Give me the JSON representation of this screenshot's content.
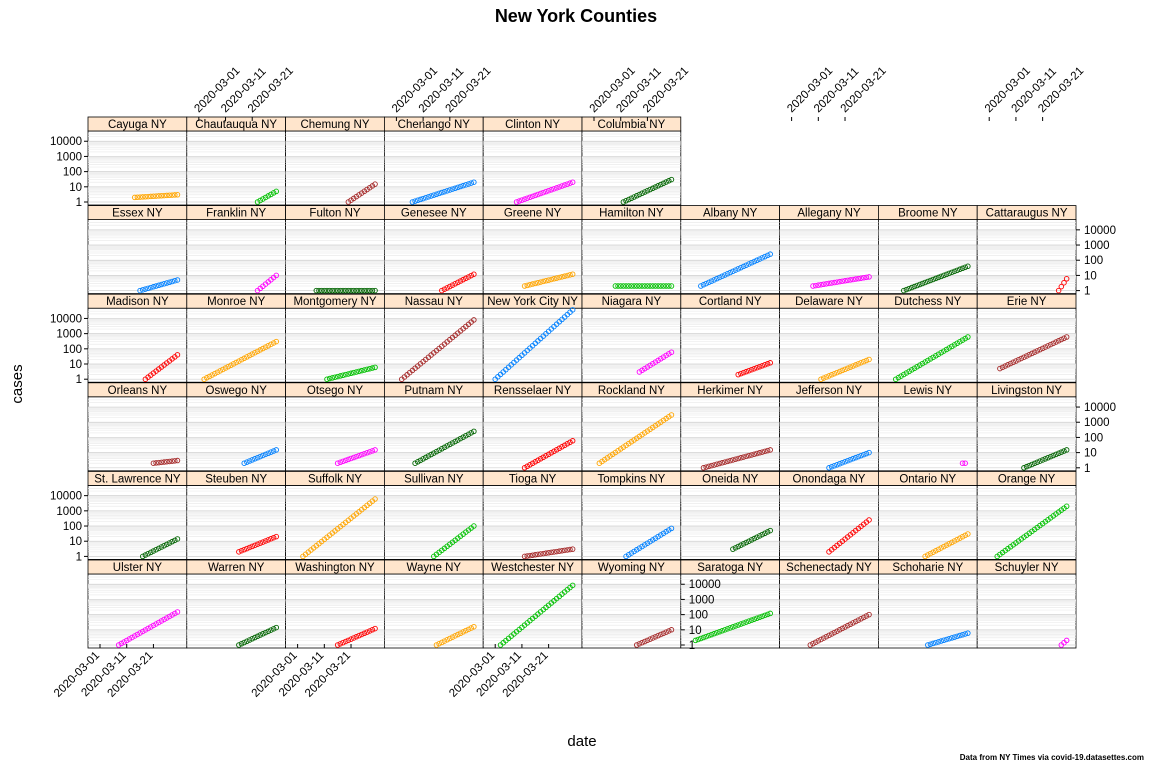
{
  "chart_data": {
    "type": "scatter",
    "title": "New York Counties",
    "xlabel": "date",
    "ylabel": "cases",
    "yscale": "log",
    "ylim": [
      1,
      30000
    ],
    "xlim": [
      "2020-02-27",
      "2020-04-01"
    ],
    "x_ticks": [
      "2020-03-01",
      "2020-03-11",
      "2020-03-21"
    ],
    "y_ticks": [
      "1",
      "10",
      "100",
      "1000",
      "10000"
    ],
    "note": "Data from NY Times via covid-19.datasettes.com",
    "strip_color": "#ffe5cc",
    "palette": [
      "#0080ff",
      "#ff00ff",
      "#006400",
      "#ff0000",
      "#ffa500"
    ],
    "panels": [
      {
        "name": "Ulster NY",
        "color": "#ff00ff",
        "start": "2020-03-08",
        "end": "2020-03-30",
        "v0": 1,
        "v1": 150
      },
      {
        "name": "Warren NY",
        "color": "#006400",
        "start": "2020-03-16",
        "end": "2020-03-30",
        "v0": 1,
        "v1": 14
      },
      {
        "name": "Washington NY",
        "color": "#ff0000",
        "start": "2020-03-16",
        "end": "2020-03-30",
        "v0": 1,
        "v1": 12
      },
      {
        "name": "Wayne NY",
        "color": "#ffa500",
        "start": "2020-03-16",
        "end": "2020-03-30",
        "v0": 1,
        "v1": 16
      },
      {
        "name": "Westchester NY",
        "color": "#00c000",
        "start": "2020-03-03",
        "end": "2020-03-30",
        "v0": 1,
        "v1": 8500
      },
      {
        "name": "Wyoming NY",
        "color": "#a52a2a",
        "start": "2020-03-17",
        "end": "2020-03-30",
        "v0": 1,
        "v1": 10
      },
      {
        "name": "Saratoga NY",
        "color": "#00c000",
        "start": "2020-03-02",
        "end": "2020-03-30",
        "v0": 2,
        "v1": 120
      },
      {
        "name": "Schenectady NY",
        "color": "#a52a2a",
        "start": "2020-03-08",
        "end": "2020-03-30",
        "v0": 1,
        "v1": 100
      },
      {
        "name": "Schoharie NY",
        "color": "#0080ff",
        "start": "2020-03-15",
        "end": "2020-03-30",
        "v0": 1,
        "v1": 6
      },
      {
        "name": "Schuyler NY",
        "color": "#ff00ff",
        "start": "2020-03-28",
        "end": "2020-03-30",
        "v0": 1,
        "v1": 2
      },
      {
        "name": "St. Lawrence NY",
        "color": "#006400",
        "start": "2020-03-17",
        "end": "2020-03-30",
        "v0": 1,
        "v1": 14
      },
      {
        "name": "Steuben NY",
        "color": "#ff0000",
        "start": "2020-03-16",
        "end": "2020-03-30",
        "v0": 2,
        "v1": 20
      },
      {
        "name": "Suffolk NY",
        "color": "#ffa500",
        "start": "2020-03-03",
        "end": "2020-03-30",
        "v0": 1,
        "v1": 6000
      },
      {
        "name": "Sullivan NY",
        "color": "#00c000",
        "start": "2020-03-15",
        "end": "2020-03-30",
        "v0": 1,
        "v1": 100
      },
      {
        "name": "Tioga NY",
        "color": "#a52a2a",
        "start": "2020-03-12",
        "end": "2020-03-30",
        "v0": 1,
        "v1": 3
      },
      {
        "name": "Tompkins NY",
        "color": "#0080ff",
        "start": "2020-03-13",
        "end": "2020-03-30",
        "v0": 1,
        "v1": 70
      },
      {
        "name": "Oneida NY",
        "color": "#006400",
        "start": "2020-03-16",
        "end": "2020-03-30",
        "v0": 3,
        "v1": 50
      },
      {
        "name": "Onondaga NY",
        "color": "#ff0000",
        "start": "2020-03-15",
        "end": "2020-03-30",
        "v0": 2,
        "v1": 250
      },
      {
        "name": "Ontario NY",
        "color": "#ffa500",
        "start": "2020-03-14",
        "end": "2020-03-30",
        "v0": 1,
        "v1": 30
      },
      {
        "name": "Orange NY",
        "color": "#00c000",
        "start": "2020-03-04",
        "end": "2020-03-30",
        "v0": 1,
        "v1": 2000
      },
      {
        "name": "Orleans NY",
        "color": "#a52a2a",
        "start": "2020-03-21",
        "end": "2020-03-30",
        "v0": 2,
        "v1": 3
      },
      {
        "name": "Oswego NY",
        "color": "#0080ff",
        "start": "2020-03-18",
        "end": "2020-03-30",
        "v0": 2,
        "v1": 15
      },
      {
        "name": "Otsego NY",
        "color": "#ff00ff",
        "start": "2020-03-16",
        "end": "2020-03-30",
        "v0": 2,
        "v1": 15
      },
      {
        "name": "Putnam NY",
        "color": "#006400",
        "start": "2020-03-08",
        "end": "2020-03-30",
        "v0": 2,
        "v1": 250
      },
      {
        "name": "Rensselaer NY",
        "color": "#ff0000",
        "start": "2020-03-12",
        "end": "2020-03-30",
        "v0": 1,
        "v1": 60
      },
      {
        "name": "Rockland NY",
        "color": "#ffa500",
        "start": "2020-03-03",
        "end": "2020-03-30",
        "v0": 2,
        "v1": 3000
      },
      {
        "name": "Herkimer NY",
        "color": "#a52a2a",
        "start": "2020-03-05",
        "end": "2020-03-30",
        "v0": 1,
        "v1": 15
      },
      {
        "name": "Jefferson NY",
        "color": "#0080ff",
        "start": "2020-03-15",
        "end": "2020-03-30",
        "v0": 1,
        "v1": 10
      },
      {
        "name": "Lewis NY",
        "color": "#ff00ff",
        "start": "2020-03-28",
        "end": "2020-03-29",
        "v0": 2,
        "v1": 2
      },
      {
        "name": "Livingston NY",
        "color": "#006400",
        "start": "2020-03-14",
        "end": "2020-03-30",
        "v0": 1,
        "v1": 15
      },
      {
        "name": "Madison NY",
        "color": "#ff0000",
        "start": "2020-03-18",
        "end": "2020-03-30",
        "v0": 1,
        "v1": 40
      },
      {
        "name": "Monroe NY",
        "color": "#ffa500",
        "start": "2020-03-03",
        "end": "2020-03-30",
        "v0": 1,
        "v1": 300
      },
      {
        "name": "Montgomery NY",
        "color": "#00c000",
        "start": "2020-03-12",
        "end": "2020-03-30",
        "v0": 1,
        "v1": 6
      },
      {
        "name": "Nassau NY",
        "color": "#a52a2a",
        "start": "2020-03-03",
        "end": "2020-03-30",
        "v0": 1,
        "v1": 8000
      },
      {
        "name": "New York City NY",
        "color": "#0080ff",
        "start": "2020-03-01",
        "end": "2020-03-30",
        "v0": 1,
        "v1": 37000
      },
      {
        "name": "Niagara NY",
        "color": "#ff00ff",
        "start": "2020-03-18",
        "end": "2020-03-30",
        "v0": 3,
        "v1": 60
      },
      {
        "name": "Cortland NY",
        "color": "#ff0000",
        "start": "2020-03-18",
        "end": "2020-03-30",
        "v0": 2,
        "v1": 12
      },
      {
        "name": "Delaware NY",
        "color": "#ffa500",
        "start": "2020-03-12",
        "end": "2020-03-30",
        "v0": 1,
        "v1": 20
      },
      {
        "name": "Dutchess NY",
        "color": "#00c000",
        "start": "2020-03-03",
        "end": "2020-03-30",
        "v0": 1,
        "v1": 600
      },
      {
        "name": "Erie NY",
        "color": "#a52a2a",
        "start": "2020-03-05",
        "end": "2020-03-30",
        "v0": 5,
        "v1": 600
      },
      {
        "name": "Essex NY",
        "color": "#0080ff",
        "start": "2020-03-16",
        "end": "2020-03-30",
        "v0": 1,
        "v1": 5
      },
      {
        "name": "Franklin NY",
        "color": "#ff00ff",
        "start": "2020-03-23",
        "end": "2020-03-30",
        "v0": 1,
        "v1": 10
      },
      {
        "name": "Fulton NY",
        "color": "#006400",
        "start": "2020-03-08",
        "end": "2020-03-30",
        "v0": 1,
        "v1": 1
      },
      {
        "name": "Genesee NY",
        "color": "#ff0000",
        "start": "2020-03-18",
        "end": "2020-03-30",
        "v0": 1,
        "v1": 12
      },
      {
        "name": "Greene NY",
        "color": "#ffa500",
        "start": "2020-03-12",
        "end": "2020-03-30",
        "v0": 2,
        "v1": 12
      },
      {
        "name": "Hamilton NY",
        "color": "#00c000",
        "start": "2020-03-09",
        "end": "2020-03-30",
        "v0": 2,
        "v1": 2
      },
      {
        "name": "Albany NY",
        "color": "#0080ff",
        "start": "2020-03-04",
        "end": "2020-03-30",
        "v0": 2,
        "v1": 250
      },
      {
        "name": "Allegany NY",
        "color": "#ff00ff",
        "start": "2020-03-09",
        "end": "2020-03-30",
        "v0": 2,
        "v1": 8
      },
      {
        "name": "Broome NY",
        "color": "#006400",
        "start": "2020-03-06",
        "end": "2020-03-30",
        "v0": 1,
        "v1": 40
      },
      {
        "name": "Cattaraugus NY",
        "color": "#ff0000",
        "start": "2020-03-27",
        "end": "2020-03-30",
        "v0": 1,
        "v1": 6
      },
      {
        "name": "Cayuga NY",
        "color": "#ffa500",
        "start": "2020-03-14",
        "end": "2020-03-30",
        "v0": 2,
        "v1": 3
      },
      {
        "name": "Chautauqua NY",
        "color": "#00c000",
        "start": "2020-03-23",
        "end": "2020-03-30",
        "v0": 1,
        "v1": 5
      },
      {
        "name": "Chemung NY",
        "color": "#a52a2a",
        "start": "2020-03-20",
        "end": "2020-03-30",
        "v0": 1,
        "v1": 15
      },
      {
        "name": "Chenango NY",
        "color": "#0080ff",
        "start": "2020-03-07",
        "end": "2020-03-30",
        "v0": 1,
        "v1": 20
      },
      {
        "name": "Clinton NY",
        "color": "#ff00ff",
        "start": "2020-03-09",
        "end": "2020-03-30",
        "v0": 1,
        "v1": 20
      },
      {
        "name": "Columbia NY",
        "color": "#006400",
        "start": "2020-03-12",
        "end": "2020-03-30",
        "v0": 1,
        "v1": 30
      }
    ]
  }
}
